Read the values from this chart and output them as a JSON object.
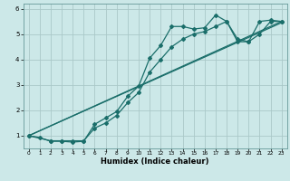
{
  "xlabel": "Humidex (Indice chaleur)",
  "bg_color": "#cce8e8",
  "grid_color": "#aac8c8",
  "line_color": "#1a6e6a",
  "xlim": [
    -0.5,
    23.5
  ],
  "ylim": [
    0.5,
    6.2
  ],
  "xticks": [
    0,
    1,
    2,
    3,
    4,
    5,
    6,
    7,
    8,
    9,
    10,
    11,
    12,
    13,
    14,
    15,
    16,
    17,
    18,
    19,
    20,
    21,
    22,
    23
  ],
  "yticks": [
    1,
    2,
    3,
    4,
    5,
    6
  ],
  "line1_x": [
    0,
    1,
    2,
    3,
    4,
    5,
    6,
    7,
    8,
    9,
    10,
    11,
    12,
    13,
    14,
    15,
    16,
    17,
    18,
    19,
    20,
    21,
    22,
    23
  ],
  "line1_y": [
    1.0,
    0.93,
    0.78,
    0.78,
    0.75,
    0.78,
    1.45,
    1.7,
    1.95,
    2.55,
    2.95,
    4.05,
    4.55,
    5.3,
    5.3,
    5.2,
    5.25,
    5.75,
    5.5,
    4.8,
    4.7,
    5.5,
    5.55,
    5.5
  ],
  "line2_x": [
    0,
    2,
    3,
    4,
    5,
    6,
    7,
    8,
    9,
    10,
    11,
    12,
    13,
    14,
    15,
    16,
    17,
    18,
    19,
    20,
    21,
    22,
    23
  ],
  "line2_y": [
    1.0,
    0.8,
    0.8,
    0.8,
    0.8,
    1.3,
    1.5,
    1.8,
    2.3,
    2.7,
    3.5,
    4.0,
    4.5,
    4.8,
    5.0,
    5.1,
    5.3,
    5.5,
    4.7,
    4.7,
    5.0,
    5.5,
    5.5
  ],
  "line3_x": [
    0,
    23
  ],
  "line3_y": [
    1.0,
    5.45
  ],
  "line4_x": [
    0,
    23
  ],
  "line4_y": [
    1.0,
    5.5
  ]
}
